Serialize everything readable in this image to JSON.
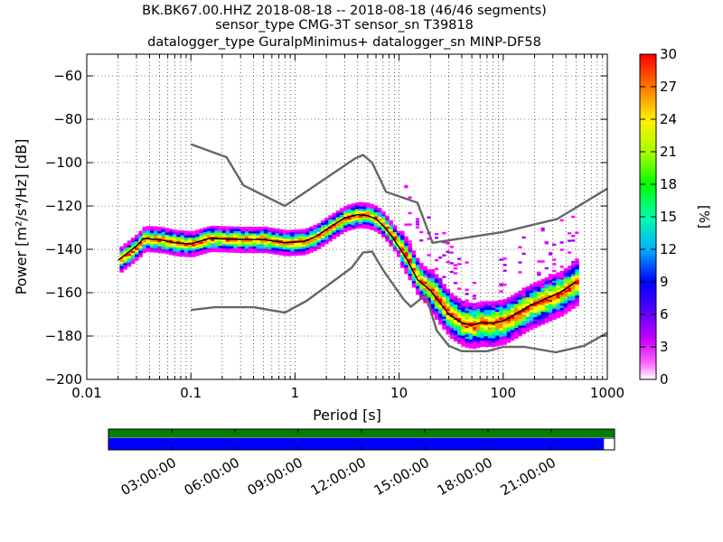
{
  "figure": {
    "title_lines": [
      "BK.BK67.00.HHZ   2018-08-18 -- 2018-08-18  (46/46 segments)",
      "sensor_type CMG-3T sensor_sn T39818",
      "datalogger_type GuralpMinimus+ datalogger_sn MINP-DF58"
    ]
  },
  "chart_data": {
    "type": "heatmap",
    "subtype": "probabilistic power spectral density (PPSD)",
    "xlabel": "Period [s]",
    "ylabel": "Power [m²/s⁴/Hz] [dB]",
    "xscale": "log",
    "xlim": [
      0.01,
      1000
    ],
    "ylim": [
      -200,
      -50
    ],
    "x_ticks": [
      0.01,
      0.1,
      1,
      10,
      100,
      1000
    ],
    "x_tick_labels": [
      "0.01",
      "0.1",
      "1",
      "10",
      "100",
      "1000"
    ],
    "y_ticks": [
      -200,
      -180,
      -160,
      -140,
      -120,
      -100,
      -80,
      -60
    ],
    "y_tick_labels": [
      "−200",
      "−180",
      "−160",
      "−140",
      "−120",
      "−100",
      "−80",
      "−60"
    ],
    "grid": true,
    "colorbar": {
      "label": "[%]",
      "min": 0,
      "max": 30,
      "ticks": [
        0,
        3,
        6,
        9,
        12,
        15,
        18,
        21,
        24,
        27,
        30
      ],
      "tick_labels": [
        "0",
        "3",
        "6",
        "9",
        "12",
        "15",
        "18",
        "21",
        "24",
        "27",
        "30"
      ]
    },
    "model_curves": {
      "noise_high": {
        "color": "#666666",
        "points": [
          [
            0.1,
            -91.5
          ],
          [
            0.22,
            -97.5
          ],
          [
            0.32,
            -110.5
          ],
          [
            0.8,
            -120
          ],
          [
            3.8,
            -98
          ],
          [
            4.5,
            -96.5
          ],
          [
            5.5,
            -100
          ],
          [
            7.5,
            -113.5
          ],
          [
            15,
            -118.5
          ],
          [
            21,
            -137
          ],
          [
            100,
            -132
          ],
          [
            330,
            -126
          ],
          [
            1000,
            -112
          ]
        ]
      },
      "noise_low": {
        "color": "#666666",
        "points": [
          [
            0.1,
            -168
          ],
          [
            0.17,
            -166.7
          ],
          [
            0.4,
            -166.7
          ],
          [
            0.8,
            -169.2
          ],
          [
            1.3,
            -163.7
          ],
          [
            3.5,
            -148.5
          ],
          [
            4.5,
            -141.5
          ],
          [
            5.5,
            -141
          ],
          [
            7,
            -149.5
          ],
          [
            11,
            -163
          ],
          [
            13,
            -166.5
          ],
          [
            18,
            -161
          ],
          [
            23,
            -177.5
          ],
          [
            30,
            -184.5
          ],
          [
            40,
            -187
          ],
          [
            70,
            -187
          ],
          [
            100,
            -185
          ],
          [
            160,
            -185
          ],
          [
            320,
            -187.5
          ],
          [
            600,
            -184.5
          ],
          [
            1000,
            -178.5
          ]
        ]
      }
    },
    "mode_curve": {
      "color": "#000000",
      "points": [
        [
          0.02,
          -145
        ],
        [
          0.025,
          -141.5
        ],
        [
          0.03,
          -138.5
        ],
        [
          0.035,
          -135
        ],
        [
          0.05,
          -135.5
        ],
        [
          0.07,
          -137
        ],
        [
          0.1,
          -137.5
        ],
        [
          0.15,
          -135
        ],
        [
          0.3,
          -135.5
        ],
        [
          0.5,
          -135.5
        ],
        [
          0.8,
          -137
        ],
        [
          1.2,
          -136.5
        ],
        [
          1.6,
          -134
        ],
        [
          2.2,
          -129.5
        ],
        [
          3,
          -125.5
        ],
        [
          4,
          -124
        ],
        [
          5,
          -124.5
        ],
        [
          6,
          -126
        ],
        [
          7,
          -129
        ],
        [
          8.5,
          -134
        ],
        [
          10,
          -139
        ],
        [
          12,
          -145
        ],
        [
          15,
          -154
        ],
        [
          20,
          -159
        ],
        [
          25,
          -165
        ],
        [
          30,
          -170
        ],
        [
          40,
          -174
        ],
        [
          50,
          -175
        ],
        [
          60,
          -174
        ],
        [
          80,
          -174
        ],
        [
          100,
          -173
        ],
        [
          130,
          -170
        ],
        [
          180,
          -166
        ],
        [
          250,
          -163
        ],
        [
          350,
          -160
        ],
        [
          500,
          -155
        ]
      ]
    },
    "density_colors": [
      "#ffffff",
      "#ff00ff",
      "#9e00ff",
      "#0000ff",
      "#00c4ff",
      "#00ff7f",
      "#7fff00",
      "#ffff00",
      "#ff8a00",
      "#ff0000"
    ]
  },
  "timeline": {
    "tick_labels": [
      "03:00:00",
      "06:00:00",
      "09:00:00",
      "12:00:00",
      "15:00:00",
      "18:00:00",
      "21:00:00"
    ],
    "top_bar_color": "#008000",
    "bottom_bar_color": "#0000ff",
    "top_bar_fraction": 1.0,
    "bottom_bar_fraction": 0.979
  }
}
